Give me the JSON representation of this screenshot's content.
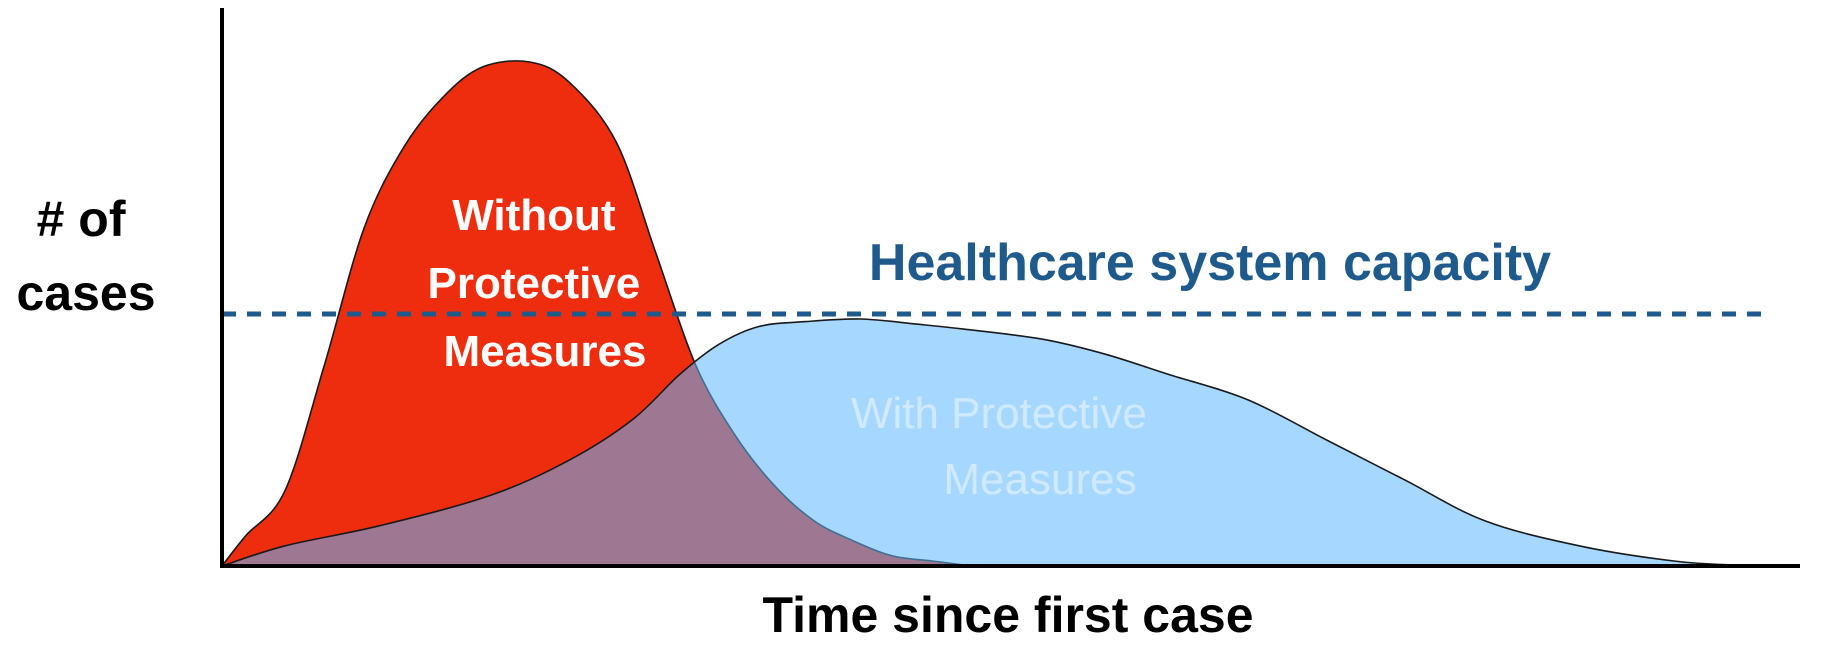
{
  "chart_data": {
    "type": "area",
    "xlabel": "Time since first case",
    "ylabel_lines": [
      "# of",
      "cases"
    ],
    "xlim": [
      0,
      100
    ],
    "ylim": [
      0,
      100
    ],
    "grid": false,
    "capacity": {
      "label": "Healthcare system capacity",
      "value": 50,
      "color": "#1f5a8c"
    },
    "series": [
      {
        "name_lines": [
          "Without",
          "Protective",
          "Measures"
        ],
        "color": "#ee2d0e",
        "x": [
          0,
          1.5,
          4,
          6.5,
          9,
          11.5,
          14,
          16.5,
          19.5,
          22,
          25,
          27.5,
          30,
          32.5,
          35,
          37.5,
          40,
          42.5,
          45,
          47.5
        ],
        "y": [
          0,
          6,
          15,
          40,
          67,
          83,
          93,
          99,
          100,
          96,
          84,
          62,
          40,
          26,
          16,
          9,
          5,
          2,
          1,
          0
        ]
      },
      {
        "name_lines": [
          "With Protective",
          "Measures"
        ],
        "color": "#5cb6ff",
        "x": [
          0,
          4,
          10,
          17,
          22,
          26,
          29,
          31.5,
          34,
          37,
          40.5,
          44,
          47,
          52,
          56,
          60,
          65,
          70,
          75,
          80,
          86,
          92,
          96,
          100
        ],
        "y": [
          0,
          4,
          8,
          14,
          21,
          29,
          38,
          44,
          47.5,
          48.5,
          49,
          48,
          47,
          45,
          42,
          38,
          33,
          25,
          17,
          9,
          4,
          1,
          0.2,
          0
        ]
      }
    ]
  }
}
